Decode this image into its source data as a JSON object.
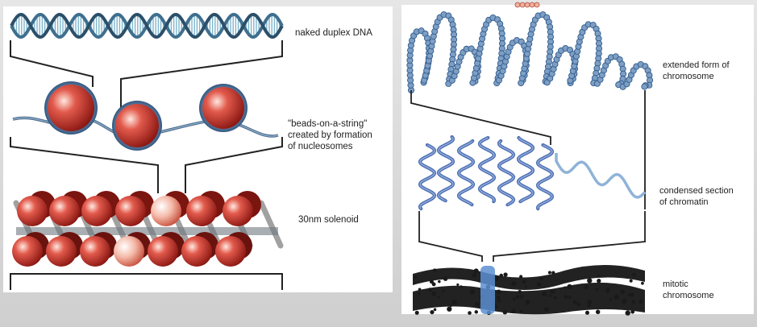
{
  "labels": {
    "naked_dna": "naked duplex DNA",
    "beads": "\"beads-on-a-string\"\ncreated by formation\nof nucleosomes",
    "solenoid": "30nm solenoid",
    "extended": "extended form of\nchromosome",
    "condensed": "condensed section\nof chromatin",
    "mitotic": "mitotic\nchromosome"
  },
  "colors": {
    "dna_strand": "#3f6f8e",
    "dna_rungs": "#7fb6cc",
    "bead": "#c4231d",
    "bead_highlight": "#f7d0c6",
    "chromatin_blue": "#4f71b5",
    "chromatin_light": "#8fb3d8",
    "chromosome": "#222222",
    "centromere": "#5b8fd1"
  }
}
